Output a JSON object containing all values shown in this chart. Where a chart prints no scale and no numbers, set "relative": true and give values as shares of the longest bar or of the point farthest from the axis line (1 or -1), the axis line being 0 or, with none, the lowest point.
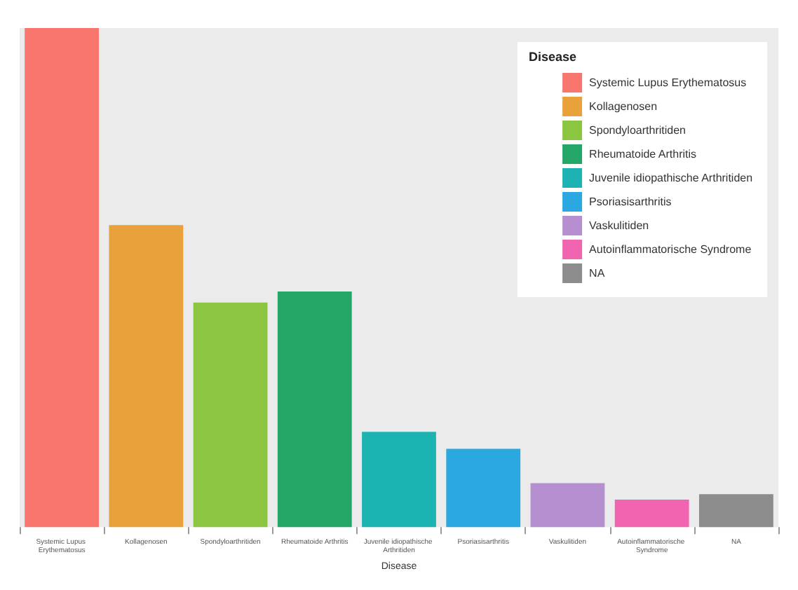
{
  "chart_data": {
    "type": "bar",
    "xlabel": "Disease",
    "legend_title": "Disease",
    "relative": true,
    "legend": "top right",
    "stacked": true,
    "categories": [
      "Systemic Lupus Erythematosus",
      "Kollagenosen",
      "Spondyloarthritiden",
      "Rheumatoide Arthritis",
      "Juvenile idiopathische Arthritiden",
      "Psoriasisarthritis",
      "Vaskulitiden",
      "Autoinflammatorische Syndrome",
      "NA"
    ],
    "series": [
      {
        "name": "Systemic Lupus Erythematosus",
        "color": "#f8766d",
        "values": [
          1,
          null,
          null,
          null,
          null,
          null,
          null,
          null,
          null
        ]
      },
      {
        "name": "Kollagenosen",
        "color": "#e9a23b",
        "values": [
          null,
          0.605,
          null,
          null,
          null,
          null,
          null,
          null,
          null
        ]
      },
      {
        "name": "Spondyloarthritiden",
        "color": "#8cc540",
        "values": [
          null,
          null,
          0.45,
          null,
          null,
          null,
          null,
          null,
          null
        ]
      },
      {
        "name": "Rheumatoide Arthritis",
        "color": "#24a669",
        "values": [
          null,
          null,
          null,
          0.472,
          null,
          null,
          null,
          null,
          null
        ]
      },
      {
        "name": "Juvenile idiopathische Arthritiden",
        "color": "#1eb3b3",
        "values": [
          null,
          null,
          null,
          null,
          0.191,
          null,
          null,
          null,
          null
        ]
      },
      {
        "name": "Psoriasisarthritis",
        "color": "#2ba8e0",
        "values": [
          null,
          null,
          null,
          null,
          null,
          0.157,
          null,
          null,
          null
        ]
      },
      {
        "name": "Vaskulitiden",
        "color": "#b68fd0",
        "values": [
          null,
          null,
          null,
          null,
          null,
          null,
          0.088,
          null,
          null
        ]
      },
      {
        "name": "Autoinflammatorische Syndrome",
        "color": "#f064b0",
        "values": [
          null,
          null,
          null,
          null,
          null,
          null,
          null,
          0.055,
          null
        ]
      },
      {
        "name": "NA",
        "color": "#8c8c8c",
        "values": [
          null,
          null,
          null,
          null,
          null,
          null,
          null,
          null,
          0.066
        ]
      }
    ]
  }
}
